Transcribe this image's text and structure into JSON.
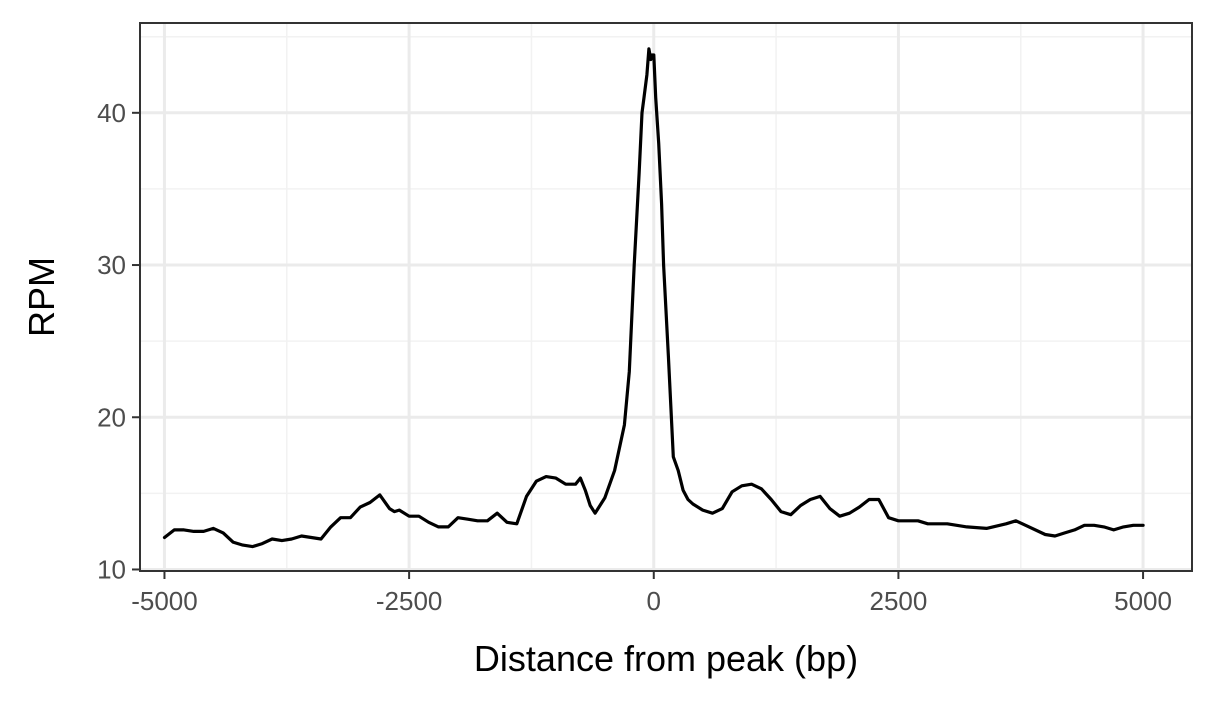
{
  "chart_data": {
    "type": "line",
    "title": "",
    "xlabel": "Distance from peak (bp)",
    "ylabel": "RPM",
    "xlim": [
      -5250,
      5500
    ],
    "ylim": [
      9.9,
      45.9
    ],
    "x_ticks": [
      -5000,
      -2500,
      0,
      2500,
      5000
    ],
    "x_tick_labels": [
      "-5000",
      "-2500",
      "0",
      "2500",
      "5000"
    ],
    "y_ticks": [
      10,
      20,
      30,
      40
    ],
    "y_tick_labels": [
      "10",
      "20",
      "30",
      "40"
    ],
    "x_minor": [
      -3750,
      -1250,
      1250,
      3750
    ],
    "y_minor": [
      15,
      25,
      35,
      45
    ],
    "grid": true,
    "legend": "none",
    "line_color": "#000000",
    "series": [
      {
        "x": [
          -5000,
          -4900,
          -4800,
          -4700,
          -4600,
          -4500,
          -4400,
          -4300,
          -4200,
          -4100,
          -4000,
          -3900,
          -3800,
          -3700,
          -3600,
          -3500,
          -3400,
          -3300,
          -3200,
          -3100,
          -3000,
          -2900,
          -2800,
          -2700,
          -2650,
          -2600,
          -2500,
          -2400,
          -2300,
          -2200,
          -2100,
          -2000,
          -1900,
          -1800,
          -1700,
          -1600,
          -1500,
          -1400,
          -1300,
          -1200,
          -1100,
          -1000,
          -900,
          -800,
          -750,
          -700,
          -650,
          -600,
          -500,
          -400,
          -300,
          -250,
          -200,
          -150,
          -120,
          -100,
          -70,
          -50,
          -30,
          -20,
          0,
          20,
          50,
          80,
          100,
          150,
          200,
          250,
          300,
          350,
          400,
          500,
          600,
          700,
          800,
          900,
          1000,
          1100,
          1200,
          1300,
          1400,
          1500,
          1600,
          1700,
          1800,
          1900,
          2000,
          2100,
          2200,
          2300,
          2400,
          2500,
          2600,
          2700,
          2800,
          2900,
          3000,
          3200,
          3400,
          3600,
          3700,
          3800,
          4000,
          4100,
          4200,
          4300,
          4400,
          4500,
          4600,
          4700,
          4800,
          4900,
          5000
        ],
        "y": [
          12.1,
          12.6,
          12.6,
          12.5,
          12.5,
          12.7,
          12.4,
          11.8,
          11.6,
          11.5,
          11.7,
          12.0,
          11.9,
          12.0,
          12.2,
          12.1,
          12.0,
          12.8,
          13.4,
          13.4,
          14.1,
          14.4,
          14.9,
          14.0,
          13.8,
          13.9,
          13.5,
          13.5,
          13.1,
          12.8,
          12.8,
          13.4,
          13.3,
          13.2,
          13.2,
          13.7,
          13.1,
          13.0,
          14.8,
          15.8,
          16.1,
          16.0,
          15.6,
          15.6,
          16.0,
          15.2,
          14.2,
          13.7,
          14.7,
          16.5,
          19.5,
          23.0,
          30.0,
          36.0,
          40.0,
          41.0,
          42.5,
          44.2,
          43.5,
          43.8,
          43.8,
          41.0,
          38.0,
          34.0,
          30.0,
          24.0,
          17.4,
          16.5,
          15.2,
          14.6,
          14.3,
          13.9,
          13.7,
          14.0,
          15.1,
          15.5,
          15.6,
          15.3,
          14.6,
          13.8,
          13.6,
          14.2,
          14.6,
          14.8,
          14.0,
          13.5,
          13.7,
          14.1,
          14.6,
          14.6,
          13.4,
          13.2,
          13.2,
          13.2,
          13.0,
          13.0,
          13.0,
          12.8,
          12.7,
          13.0,
          13.2,
          12.9,
          12.3,
          12.2,
          12.4,
          12.6,
          12.9,
          12.9,
          12.8,
          12.6,
          12.8,
          12.9,
          12.9
        ]
      }
    ]
  }
}
